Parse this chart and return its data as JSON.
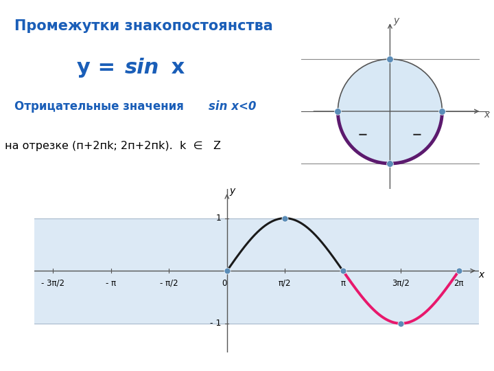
{
  "title1": "Промежутки знакопостоянства",
  "title2_y": "y = ",
  "title2_sin": "sin",
  "title2_x": " x",
  "subtitle_normal": "Отрицательные значения ",
  "subtitle_italic": "sin x<0",
  "interval_text": "на отрезке (п+2пk; 2п+2пk).  k  ∈   Z",
  "title1_color": "#1A5EB8",
  "title2_color": "#1A5EB8",
  "subtitle_color": "#1A5EB8",
  "positive_color": "#1a1a1a",
  "negative_color": "#E8186C",
  "dot_color": "#5B8DB8",
  "bg_color": "#DCE9F5",
  "axis_color": "#555555",
  "ellipse_fill": "#D8E8F5",
  "ellipse_stroke": "#555555",
  "ellipse_neg_stroke": "#5C1A6E",
  "line_color_h": "#888888"
}
